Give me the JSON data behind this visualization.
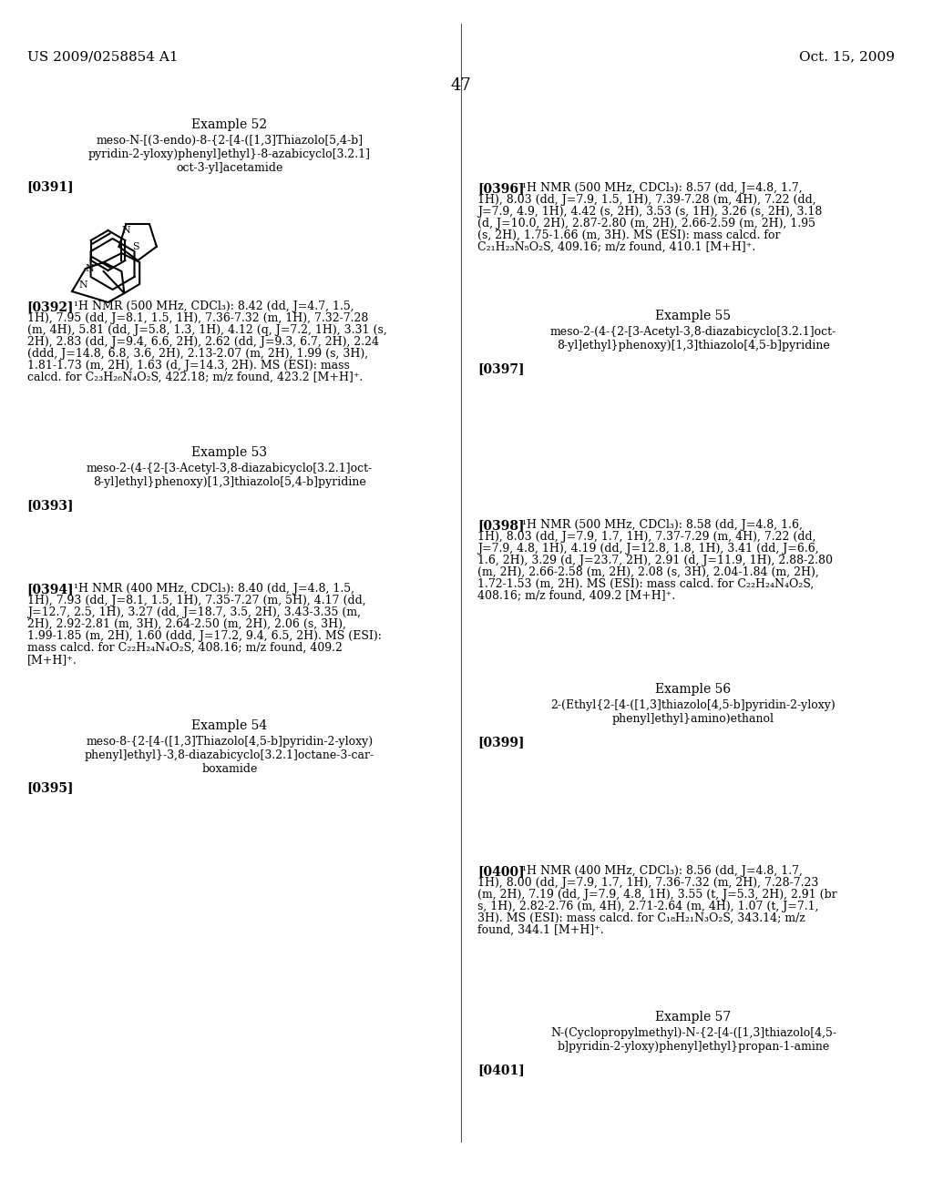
{
  "page_number": "47",
  "header_left": "US 2009/0258854 A1",
  "header_right": "Oct. 15, 2009",
  "background_color": "#ffffff",
  "text_color": "#000000",
  "font_size_header": 11,
  "font_size_body": 9,
  "font_size_example": 10,
  "font_size_bracket": 10,
  "left_column": {
    "example52_title": "Example 52",
    "example52_name": "meso-N-[(3-endo)-8-{2-[4-([1,3]Thiazolo[5,4-b]\npyridin-2-yloxy)phenyl]ethyl}-8-azabicyclo[3.2.1]\noct-3-yl]acetamide",
    "example52_bracket": "[0391]",
    "example52_nmr_bracket": "[0392]",
    "example52_nmr": "¹H NMR (500 MHz, CDCl₃): 8.42 (dd, J=4.7, 1.5,\n1H), 7.95 (dd, J=8.1, 1.5, 1H), 7.36-7.32 (m, 1H), 7.32-7.28\n(m, 4H), 5.81 (dd, J=5.8, 1.3, 1H), 4.12 (q, J=7.2, 1H), 3.31 (s,\n2H), 2.83 (dd, J=9.4, 6.6, 2H), 2.62 (dd, J=9.3, 6.7, 2H), 2.24\n(ddd, J=14.8, 6.8, 3.6, 2H), 2.13-2.07 (m, 2H), 1.99 (s, 3H),\n1.81-1.73 (m, 2H), 1.63 (d, J=14.3, 2H). MS (ESI): mass\ncalcd. for C₂₃H₂₆N₄O₂S, 422.18; m/z found, 423.2 [M+H]⁺.",
    "example53_title": "Example 53",
    "example53_name": "meso-2-(4-{2-[3-Acetyl-3,8-diazabicyclo[3.2.1]oct-\n8-yl]ethyl}phenoxy)[1,3]thiazolo[5,4-b]pyridine",
    "example53_bracket": "[0393]",
    "example53_nmr_bracket": "[0394]",
    "example53_nmr": "¹H NMR (400 MHz, CDCl₃): 8.40 (dd, J=4.8, 1.5,\n1H), 7.93 (dd, J=8.1, 1.5, 1H), 7.35-7.27 (m, 5H), 4.17 (dd,\nJ=12.7, 2.5, 1H), 3.27 (dd, J=18.7, 3.5, 2H), 3.43-3.35 (m,\n2H), 2.92-2.81 (m, 3H), 2.64-2.50 (m, 2H), 2.06 (s, 3H),\n1.99-1.85 (m, 2H), 1.60 (ddd, J=17.2, 9.4, 6.5, 2H). MS (ESI):\nmass calcd. for C₂₂H₂₄N₄O₂S, 408.16; m/z found, 409.2\n[M+H]⁺.",
    "example54_title": "Example 54",
    "example54_name": "meso-8-{2-[4-([1,3]Thiazolo[4,5-b]pyridin-2-yloxy)\nphenyl]ethyl}-3,8-diazabicyclo[3.2.1]octane-3-car-\nboxamide",
    "example54_bracket": "[0395]"
  },
  "right_column": {
    "example54_nmr_bracket": "[0396]",
    "example54_nmr": "¹H NMR (500 MHz, CDCl₃): 8.57 (dd, J=4.8, 1.7,\n1H), 8.03 (dd, J=7.9, 1.5, 1H), 7.39-7.28 (m, 4H), 7.22 (dd,\nJ=7.9, 4.9, 1H), 4.42 (s, 2H), 3.53 (s, 1H), 3.26 (s, 2H), 3.18\n(d, J=10.0, 2H), 2.87-2.80 (m, 2H), 2.66-2.59 (m, 2H), 1.95\n(s, 2H), 1.75-1.66 (m, 3H). MS (ESI): mass calcd. for\nC₂₁H₂₃N₅O₂S, 409.16; m/z found, 410.1 [M+H]⁺.",
    "example55_title": "Example 55",
    "example55_name": "meso-2-(4-{2-[3-Acetyl-3,8-diazabicyclo[3.2.1]oct-\n8-yl]ethyl}phenoxy)[1,3]thiazolo[4,5-b]pyridine",
    "example55_bracket": "[0397]",
    "example55_nmr_bracket": "[0398]",
    "example55_nmr": "¹H NMR (500 MHz, CDCl₃): 8.58 (dd, J=4.8, 1.6,\n1H), 8.03 (dd, J=7.9, 1.7, 1H), 7.37-7.29 (m, 4H), 7.22 (dd,\nJ=7.9, 4.8, 1H), 4.19 (dd, J=12.8, 1.8, 1H), 3.41 (dd, J=6.6,\n1.6, 2H), 3.29 (d, J=23.7, 2H), 2.91 (d, J=11.9, 1H), 2.88-2.80\n(m, 2H), 2.66-2.58 (m, 2H), 2.08 (s, 3H), 2.04-1.84 (m, 2H),\n1.72-1.53 (m, 2H). MS (ESI): mass calcd. for C₂₂H₂₄N₄O₂S,\n408.16; m/z found, 409.2 [M+H]⁺.",
    "example56_title": "Example 56",
    "example56_name": "2-(Ethyl{2-[4-([1,3]thiazolo[4,5-b]pyridin-2-yloxy)\nphenyl]ethyl}amino)ethanol",
    "example56_bracket": "[0399]",
    "example56_nmr_bracket": "[0400]",
    "example56_nmr": "¹H NMR (400 MHz, CDCl₃): 8.56 (dd, J=4.8, 1.7,\n1H), 8.00 (dd, J=7.9, 1.7, 1H), 7.36-7.32 (m, 2H), 7.28-7.23\n(m, 2H), 7.19 (dd, J=7.9, 4.8, 1H), 3.55 (t, J=5.3, 2H), 2.91 (br\ns, 1H), 2.82-2.76 (m, 4H), 2.71-2.64 (m, 4H), 1.07 (t, J=7.1,\n3H). MS (ESI): mass calcd. for C₁₈H₂₁N₃O₂S, 343.14; m/z\nfound, 344.1 [M+H]⁺.",
    "example57_title": "Example 57",
    "example57_name": "N-(Cyclopropylmethyl)-N-{2-[4-([1,3]thiazolo[4,5-\nb]pyridin-2-yloxy)phenyl]ethyl}propan-1-amine",
    "example57_bracket": "[0401]"
  }
}
